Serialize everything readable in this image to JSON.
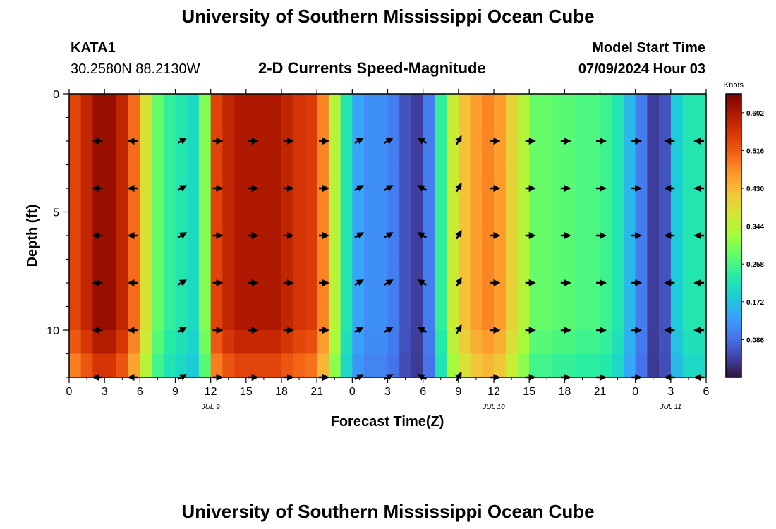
{
  "header": {
    "title": "University of Southern Mississippi Ocean Cube",
    "station_id": "KATA1",
    "station_coords": "30.2580N  88.2130W",
    "chart_title": "2-D Currents Speed-Magnitude",
    "model_label": "Model Start Time",
    "model_time": "07/09/2024 Hour 03"
  },
  "footer": {
    "repeated_title": "University of Southern Mississippi Ocean Cube"
  },
  "colors": {
    "ramp": [
      "#30123b",
      "#4145ab",
      "#4675ed",
      "#39a2fc",
      "#1bcfd4",
      "#24eca6",
      "#61fc6c",
      "#a4fc3b",
      "#d1e834",
      "#f3c63a",
      "#fe9b2d",
      "#f36315",
      "#d93806",
      "#b11901",
      "#7a0402"
    ]
  },
  "chart_data": {
    "type": "heatmap",
    "xlabel": "Forecast Time(Z)",
    "ylabel": "Depth (ft)",
    "x_range_hours": [
      0,
      54
    ],
    "y_range_ft": [
      0,
      12
    ],
    "x_ticks": [
      "0",
      "3",
      "6",
      "9",
      "12",
      "15",
      "18",
      "21",
      "0",
      "3",
      "6",
      "9",
      "12",
      "15",
      "18",
      "21",
      "0",
      "3",
      "6"
    ],
    "y_ticks": [
      "0",
      "5",
      "10"
    ],
    "date_labels": [
      {
        "label": "JUL 9",
        "hour": 12
      },
      {
        "label": "JUL 10",
        "hour": 36
      },
      {
        "label": "JUL 11",
        "hour": 51
      }
    ],
    "colorbar": {
      "unit": "Knots",
      "min": 0.0,
      "max": 0.645,
      "tick_labels": [
        "0.602",
        "0.516",
        "0.430",
        "0.344",
        "0.258",
        "0.172",
        "0.086"
      ],
      "tick_values": [
        0.602,
        0.516,
        0.43,
        0.344,
        0.258,
        0.172,
        0.086
      ]
    },
    "time_hours": [
      0,
      1,
      2,
      3,
      4,
      5,
      6,
      7,
      8,
      9,
      10,
      11,
      12,
      13,
      14,
      15,
      16,
      17,
      18,
      19,
      20,
      21,
      22,
      23,
      24,
      25,
      26,
      27,
      28,
      29,
      30,
      31,
      32,
      33,
      34,
      35,
      36,
      37,
      38,
      39,
      40,
      41,
      42,
      43,
      44,
      45,
      46,
      47,
      48,
      49,
      50,
      51,
      52,
      53,
      54
    ],
    "speed_knots_surface": [
      0.54,
      0.58,
      0.62,
      0.62,
      0.58,
      0.5,
      0.38,
      0.28,
      0.24,
      0.22,
      0.2,
      0.3,
      0.54,
      0.58,
      0.6,
      0.6,
      0.6,
      0.6,
      0.58,
      0.56,
      0.55,
      0.48,
      0.34,
      0.22,
      0.14,
      0.12,
      0.12,
      0.1,
      0.06,
      0.04,
      0.1,
      0.24,
      0.36,
      0.42,
      0.46,
      0.48,
      0.46,
      0.4,
      0.34,
      0.28,
      0.28,
      0.27,
      0.27,
      0.26,
      0.26,
      0.25,
      0.22,
      0.16,
      0.1,
      0.04,
      0.06,
      0.18,
      0.22,
      0.22,
      0.22
    ],
    "depth_factor": [
      1.0,
      1.0,
      1.0,
      1.0,
      1.0,
      1.0,
      1.0,
      1.0,
      1.0,
      1.0,
      0.96,
      0.9
    ],
    "vector_depths_ft": [
      2,
      4,
      6,
      8,
      10,
      12
    ],
    "vector_times_hours": [
      2.5,
      5.5,
      9.5,
      12.5,
      15.5,
      18.5,
      21.5,
      24.5,
      27,
      30,
      33,
      36,
      39,
      42,
      45,
      48,
      51,
      53.5
    ],
    "vector_directions_deg": [
      180,
      180,
      30,
      0,
      0,
      0,
      0,
      30,
      30,
      150,
      60,
      0,
      0,
      0,
      0,
      0,
      180,
      180
    ]
  }
}
